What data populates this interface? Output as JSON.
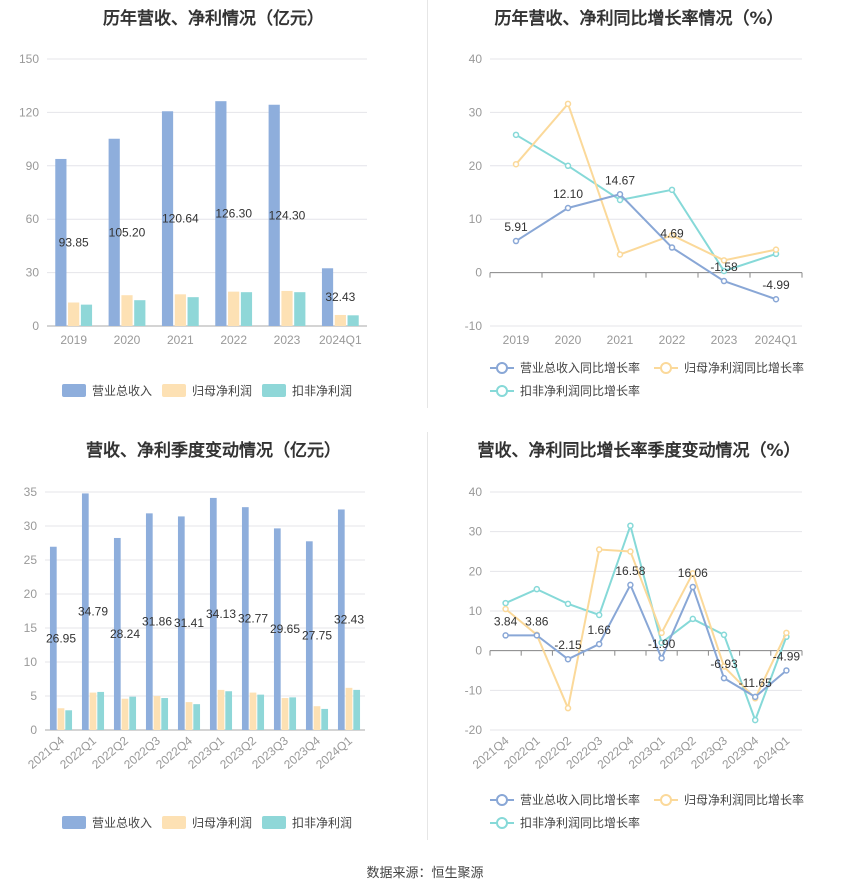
{
  "source_label": "数据来源：恒生聚源",
  "colors": {
    "revenue": "#8eaedc",
    "net_profit": "#fde1b4",
    "deducted_profit": "#8fd7d8",
    "revenue_line": "#89a7d6",
    "net_profit_line": "#fbd99a",
    "deducted_profit_line": "#86d9d8",
    "grid": "#e4e4ea",
    "axis_text": "#999999"
  },
  "chart_data": [
    {
      "id": "annual_bar",
      "type": "bar",
      "title": "历年营收、净利情况（亿元）",
      "categories": [
        "2019",
        "2020",
        "2021",
        "2022",
        "2023",
        "2024Q1"
      ],
      "ylim": [
        0,
        150
      ],
      "yticks": [
        "0",
        "30",
        "60",
        "90",
        "120",
        "150"
      ],
      "series": [
        {
          "name": "营业总收入",
          "values": [
            93.85,
            105.2,
            120.64,
            126.3,
            124.3,
            32.43
          ],
          "labels": [
            "93.85",
            "105.20",
            "120.64",
            "126.30",
            "124.30",
            "32.43"
          ]
        },
        {
          "name": "归母净利润",
          "values": [
            13.2,
            17.3,
            17.8,
            19.3,
            19.7,
            6.2
          ]
        },
        {
          "name": "扣非净利润",
          "values": [
            12.0,
            14.5,
            16.2,
            19.0,
            19.0,
            6.0
          ]
        }
      ],
      "legend": "bottom"
    },
    {
      "id": "annual_growth",
      "type": "line",
      "title": "历年营收、净利同比增长率情况（%）",
      "categories": [
        "2019",
        "2020",
        "2021",
        "2022",
        "2023",
        "2024Q1"
      ],
      "ylim": [
        -10,
        40
      ],
      "yticks": [
        "-10",
        "0",
        "10",
        "20",
        "30",
        "40"
      ],
      "series": [
        {
          "name": "营业总收入同比增长率",
          "values": [
            5.91,
            12.1,
            14.67,
            4.69,
            -1.58,
            -4.99
          ],
          "labels": [
            "5.91",
            "12.10",
            "14.67",
            "4.69",
            "-1.58",
            "-4.99"
          ]
        },
        {
          "name": "归母净利润同比增长率",
          "values": [
            20.3,
            31.6,
            3.4,
            7.0,
            2.3,
            4.3
          ]
        },
        {
          "name": "扣非净利润同比增长率",
          "values": [
            25.8,
            20.0,
            13.6,
            15.5,
            0.3,
            3.5
          ]
        }
      ],
      "legend": "bottom"
    },
    {
      "id": "quarterly_bar",
      "type": "bar",
      "title": "营收、净利季度变动情况（亿元）",
      "categories": [
        "2021Q4",
        "2022Q1",
        "2022Q2",
        "2022Q3",
        "2022Q4",
        "2023Q1",
        "2023Q2",
        "2023Q3",
        "2023Q4",
        "2024Q1"
      ],
      "ylim": [
        0,
        35
      ],
      "yticks": [
        "0",
        "5",
        "10",
        "15",
        "20",
        "25",
        "30",
        "35"
      ],
      "series": [
        {
          "name": "营业总收入",
          "values": [
            26.95,
            34.79,
            28.24,
            31.86,
            31.41,
            34.13,
            32.77,
            29.65,
            27.75,
            32.43
          ],
          "labels": [
            "26.95",
            "34.79",
            "28.24",
            "31.86",
            "31.41",
            "34.13",
            "32.77",
            "29.65",
            "27.75",
            "32.43"
          ]
        },
        {
          "name": "归母净利润",
          "values": [
            3.2,
            5.5,
            4.6,
            5.0,
            4.1,
            5.9,
            5.5,
            4.7,
            3.5,
            6.2
          ]
        },
        {
          "name": "扣非净利润",
          "values": [
            2.9,
            5.6,
            4.9,
            4.7,
            3.8,
            5.7,
            5.2,
            4.8,
            3.1,
            5.9
          ]
        }
      ],
      "legend": "bottom"
    },
    {
      "id": "quarterly_growth",
      "type": "line",
      "title": "营收、净利同比增长率季度变动情况（%）",
      "categories": [
        "2021Q4",
        "2022Q1",
        "2022Q2",
        "2022Q3",
        "2022Q4",
        "2023Q1",
        "2023Q2",
        "2023Q3",
        "2023Q4",
        "2024Q1"
      ],
      "ylim": [
        -20,
        40
      ],
      "yticks": [
        "-20",
        "-10",
        "0",
        "10",
        "20",
        "30",
        "40"
      ],
      "series": [
        {
          "name": "营业总收入同比增长率",
          "values": [
            3.84,
            3.86,
            -2.15,
            1.66,
            16.58,
            -1.9,
            16.06,
            -6.93,
            -11.65,
            -4.99
          ],
          "labels": [
            "3.84",
            "3.86",
            "-2.15",
            "1.66",
            "16.58",
            "-1.90",
            "16.06",
            "-6.93",
            "-11.65",
            "-4.99"
          ]
        },
        {
          "name": "归母净利润同比增长率",
          "values": [
            10.5,
            4.0,
            -14.5,
            25.5,
            25.0,
            4.5,
            19.5,
            -4.0,
            -12.0,
            4.5
          ]
        },
        {
          "name": "扣非净利润同比增长率",
          "values": [
            12.0,
            15.5,
            11.8,
            9.0,
            31.5,
            2.0,
            8.0,
            4.0,
            -17.5,
            3.5
          ]
        }
      ],
      "legend": "bottom"
    }
  ]
}
